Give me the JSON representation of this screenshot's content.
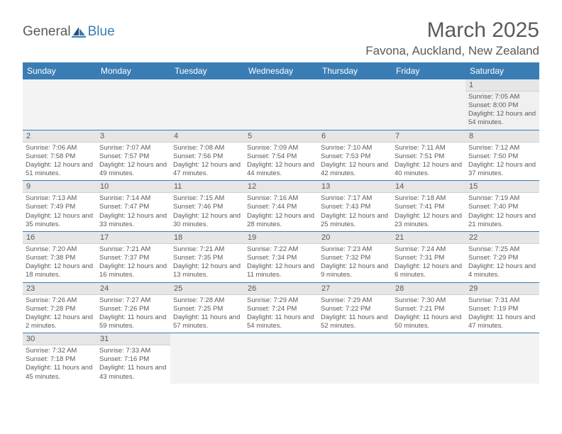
{
  "brand": {
    "word1": "General",
    "word2": "Blue",
    "icon_color": "#3a7db5"
  },
  "header": {
    "month_title": "March 2025",
    "location": "Favona, Auckland, New Zealand"
  },
  "colors": {
    "header_bg": "#3a7db5",
    "text": "#5a5a5a",
    "cell_header_bg": "#e6e6e6",
    "row_divider": "#3a7db5",
    "empty_bg": "#f3f3f3"
  },
  "day_names": [
    "Sunday",
    "Monday",
    "Tuesday",
    "Wednesday",
    "Thursday",
    "Friday",
    "Saturday"
  ],
  "weeks": [
    [
      null,
      null,
      null,
      null,
      null,
      null,
      {
        "n": "1",
        "sr": "Sunrise: 7:05 AM",
        "ss": "Sunset: 8:00 PM",
        "dl": "Daylight: 12 hours and 54 minutes."
      }
    ],
    [
      {
        "n": "2",
        "sr": "Sunrise: 7:06 AM",
        "ss": "Sunset: 7:58 PM",
        "dl": "Daylight: 12 hours and 51 minutes."
      },
      {
        "n": "3",
        "sr": "Sunrise: 7:07 AM",
        "ss": "Sunset: 7:57 PM",
        "dl": "Daylight: 12 hours and 49 minutes."
      },
      {
        "n": "4",
        "sr": "Sunrise: 7:08 AM",
        "ss": "Sunset: 7:56 PM",
        "dl": "Daylight: 12 hours and 47 minutes."
      },
      {
        "n": "5",
        "sr": "Sunrise: 7:09 AM",
        "ss": "Sunset: 7:54 PM",
        "dl": "Daylight: 12 hours and 44 minutes."
      },
      {
        "n": "6",
        "sr": "Sunrise: 7:10 AM",
        "ss": "Sunset: 7:53 PM",
        "dl": "Daylight: 12 hours and 42 minutes."
      },
      {
        "n": "7",
        "sr": "Sunrise: 7:11 AM",
        "ss": "Sunset: 7:51 PM",
        "dl": "Daylight: 12 hours and 40 minutes."
      },
      {
        "n": "8",
        "sr": "Sunrise: 7:12 AM",
        "ss": "Sunset: 7:50 PM",
        "dl": "Daylight: 12 hours and 37 minutes."
      }
    ],
    [
      {
        "n": "9",
        "sr": "Sunrise: 7:13 AM",
        "ss": "Sunset: 7:49 PM",
        "dl": "Daylight: 12 hours and 35 minutes."
      },
      {
        "n": "10",
        "sr": "Sunrise: 7:14 AM",
        "ss": "Sunset: 7:47 PM",
        "dl": "Daylight: 12 hours and 33 minutes."
      },
      {
        "n": "11",
        "sr": "Sunrise: 7:15 AM",
        "ss": "Sunset: 7:46 PM",
        "dl": "Daylight: 12 hours and 30 minutes."
      },
      {
        "n": "12",
        "sr": "Sunrise: 7:16 AM",
        "ss": "Sunset: 7:44 PM",
        "dl": "Daylight: 12 hours and 28 minutes."
      },
      {
        "n": "13",
        "sr": "Sunrise: 7:17 AM",
        "ss": "Sunset: 7:43 PM",
        "dl": "Daylight: 12 hours and 25 minutes."
      },
      {
        "n": "14",
        "sr": "Sunrise: 7:18 AM",
        "ss": "Sunset: 7:41 PM",
        "dl": "Daylight: 12 hours and 23 minutes."
      },
      {
        "n": "15",
        "sr": "Sunrise: 7:19 AM",
        "ss": "Sunset: 7:40 PM",
        "dl": "Daylight: 12 hours and 21 minutes."
      }
    ],
    [
      {
        "n": "16",
        "sr": "Sunrise: 7:20 AM",
        "ss": "Sunset: 7:38 PM",
        "dl": "Daylight: 12 hours and 18 minutes."
      },
      {
        "n": "17",
        "sr": "Sunrise: 7:21 AM",
        "ss": "Sunset: 7:37 PM",
        "dl": "Daylight: 12 hours and 16 minutes."
      },
      {
        "n": "18",
        "sr": "Sunrise: 7:21 AM",
        "ss": "Sunset: 7:35 PM",
        "dl": "Daylight: 12 hours and 13 minutes."
      },
      {
        "n": "19",
        "sr": "Sunrise: 7:22 AM",
        "ss": "Sunset: 7:34 PM",
        "dl": "Daylight: 12 hours and 11 minutes."
      },
      {
        "n": "20",
        "sr": "Sunrise: 7:23 AM",
        "ss": "Sunset: 7:32 PM",
        "dl": "Daylight: 12 hours and 9 minutes."
      },
      {
        "n": "21",
        "sr": "Sunrise: 7:24 AM",
        "ss": "Sunset: 7:31 PM",
        "dl": "Daylight: 12 hours and 6 minutes."
      },
      {
        "n": "22",
        "sr": "Sunrise: 7:25 AM",
        "ss": "Sunset: 7:29 PM",
        "dl": "Daylight: 12 hours and 4 minutes."
      }
    ],
    [
      {
        "n": "23",
        "sr": "Sunrise: 7:26 AM",
        "ss": "Sunset: 7:28 PM",
        "dl": "Daylight: 12 hours and 2 minutes."
      },
      {
        "n": "24",
        "sr": "Sunrise: 7:27 AM",
        "ss": "Sunset: 7:26 PM",
        "dl": "Daylight: 11 hours and 59 minutes."
      },
      {
        "n": "25",
        "sr": "Sunrise: 7:28 AM",
        "ss": "Sunset: 7:25 PM",
        "dl": "Daylight: 11 hours and 57 minutes."
      },
      {
        "n": "26",
        "sr": "Sunrise: 7:29 AM",
        "ss": "Sunset: 7:24 PM",
        "dl": "Daylight: 11 hours and 54 minutes."
      },
      {
        "n": "27",
        "sr": "Sunrise: 7:29 AM",
        "ss": "Sunset: 7:22 PM",
        "dl": "Daylight: 11 hours and 52 minutes."
      },
      {
        "n": "28",
        "sr": "Sunrise: 7:30 AM",
        "ss": "Sunset: 7:21 PM",
        "dl": "Daylight: 11 hours and 50 minutes."
      },
      {
        "n": "29",
        "sr": "Sunrise: 7:31 AM",
        "ss": "Sunset: 7:19 PM",
        "dl": "Daylight: 11 hours and 47 minutes."
      }
    ],
    [
      {
        "n": "30",
        "sr": "Sunrise: 7:32 AM",
        "ss": "Sunset: 7:18 PM",
        "dl": "Daylight: 11 hours and 45 minutes."
      },
      {
        "n": "31",
        "sr": "Sunrise: 7:33 AM",
        "ss": "Sunset: 7:16 PM",
        "dl": "Daylight: 11 hours and 43 minutes."
      },
      null,
      null,
      null,
      null,
      null
    ]
  ]
}
